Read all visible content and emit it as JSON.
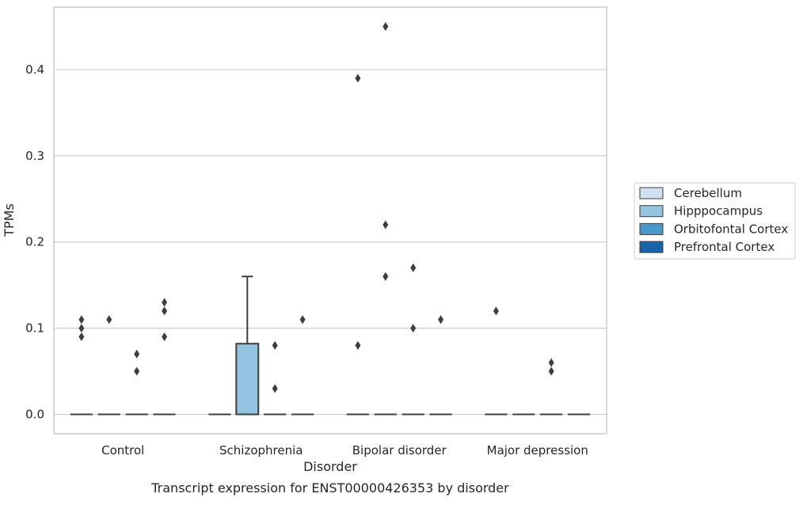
{
  "chart_data": {
    "type": "box",
    "xlabel": "Disorder",
    "ylabel": "TPMs",
    "caption": "Transcript expression for ENST00000426353 by disorder",
    "ylim": [
      -0.0225,
      0.4725
    ],
    "yticks": [
      0.0,
      0.1,
      0.2,
      0.3,
      0.4
    ],
    "ytick_labels": [
      "0.0",
      "0.1",
      "0.2",
      "0.3",
      "0.4"
    ],
    "grid": "horizontal",
    "legend_placement": "right",
    "categories": [
      "Control",
      "Schizophrenia",
      "Bipolar disorder",
      "Major depression"
    ],
    "series": [
      {
        "name": "Cerebellum",
        "color": "#d0e1f2",
        "boxes": [
          {
            "q1": 0,
            "median": 0,
            "q3": 0,
            "whisker_low": 0,
            "whisker_high": 0,
            "outliers": [
              0.09,
              0.1,
              0.11
            ]
          },
          {
            "q1": 0,
            "median": 0,
            "q3": 0,
            "whisker_low": 0,
            "whisker_high": 0,
            "outliers": []
          },
          {
            "q1": 0,
            "median": 0,
            "q3": 0,
            "whisker_low": 0,
            "whisker_high": 0,
            "outliers": [
              0.08,
              0.39
            ]
          },
          {
            "q1": 0,
            "median": 0,
            "q3": 0,
            "whisker_low": 0,
            "whisker_high": 0,
            "outliers": [
              0.12
            ]
          }
        ]
      },
      {
        "name": "Hipppocampus",
        "color": "#94c4df",
        "boxes": [
          {
            "q1": 0,
            "median": 0,
            "q3": 0,
            "whisker_low": 0,
            "whisker_high": 0,
            "outliers": [
              0.11
            ]
          },
          {
            "q1": 0,
            "median": 0,
            "q3": 0.082,
            "whisker_low": 0,
            "whisker_high": 0.16,
            "outliers": []
          },
          {
            "q1": 0,
            "median": 0,
            "q3": 0,
            "whisker_low": 0,
            "whisker_high": 0,
            "outliers": [
              0.16,
              0.22,
              0.45
            ]
          },
          {
            "q1": 0,
            "median": 0,
            "q3": 0,
            "whisker_low": 0,
            "whisker_high": 0,
            "outliers": []
          }
        ]
      },
      {
        "name": "Orbitofontal Cortex",
        "color": "#4a98c9",
        "boxes": [
          {
            "q1": 0,
            "median": 0,
            "q3": 0,
            "whisker_low": 0,
            "whisker_high": 0,
            "outliers": [
              0.05,
              0.07
            ]
          },
          {
            "q1": 0,
            "median": 0,
            "q3": 0,
            "whisker_low": 0,
            "whisker_high": 0,
            "outliers": [
              0.03,
              0.08
            ]
          },
          {
            "q1": 0,
            "median": 0,
            "q3": 0,
            "whisker_low": 0,
            "whisker_high": 0,
            "outliers": [
              0.1,
              0.17
            ]
          },
          {
            "q1": 0,
            "median": 0,
            "q3": 0,
            "whisker_low": 0,
            "whisker_high": 0,
            "outliers": [
              0.05,
              0.06
            ]
          }
        ]
      },
      {
        "name": "Prefrontal Cortex",
        "color": "#1764ab",
        "boxes": [
          {
            "q1": 0,
            "median": 0,
            "q3": 0,
            "whisker_low": 0,
            "whisker_high": 0,
            "outliers": [
              0.09,
              0.12,
              0.13
            ]
          },
          {
            "q1": 0,
            "median": 0,
            "q3": 0,
            "whisker_low": 0,
            "whisker_high": 0,
            "outliers": [
              0.11
            ]
          },
          {
            "q1": 0,
            "median": 0,
            "q3": 0,
            "whisker_low": 0,
            "whisker_high": 0,
            "outliers": [
              0.11
            ]
          },
          {
            "q1": 0,
            "median": 0,
            "q3": 0,
            "whisker_low": 0,
            "whisker_high": 0,
            "outliers": []
          }
        ]
      }
    ],
    "style": {
      "line_color": "#3d3d3d",
      "grid_color": "#cccccc",
      "frame_color": "#cccccc"
    }
  }
}
